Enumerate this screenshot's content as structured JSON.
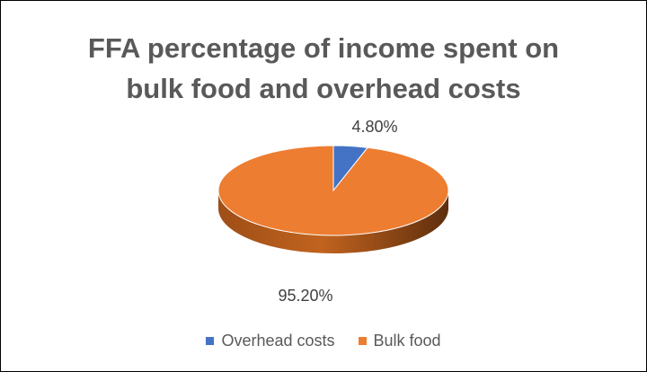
{
  "chart_data": {
    "type": "pie",
    "title_lines": [
      "FFA percentage of income spent on",
      "bulk food and overhead costs"
    ],
    "categories": [
      "Overhead costs",
      "Bulk food"
    ],
    "values": [
      4.8,
      95.2
    ],
    "labels": [
      "4.80%",
      "95.20%"
    ],
    "colors": [
      "#4472C4",
      "#ED7D31"
    ],
    "style": "3d",
    "legend_position": "bottom"
  }
}
